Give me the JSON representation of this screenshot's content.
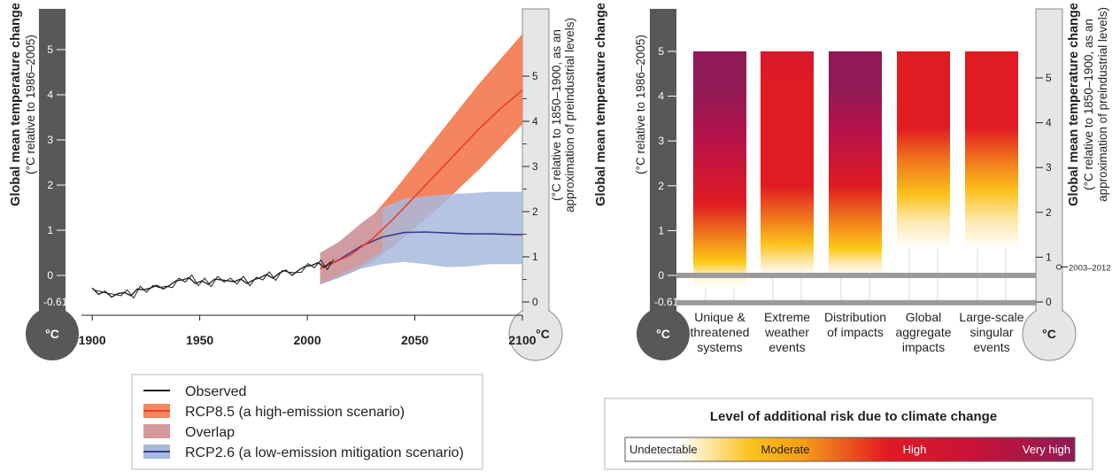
{
  "chart_data": [
    {
      "type": "line",
      "left_axis": {
        "title": "Global mean temperature change",
        "subtitle": "(°C relative to 1986–2005)",
        "ticks": [
          "0",
          "1",
          "2",
          "3",
          "4",
          "5"
        ],
        "baseline_label": "-0.61",
        "unit_label": "°C"
      },
      "right_axis": {
        "subtitle_line1": "(°C relative to 1850–1900, as an",
        "subtitle_line2": "approximation of preindustrial levels)",
        "ticks": [
          "0",
          "1",
          "2",
          "3",
          "4",
          "5"
        ],
        "unit_label": "°C"
      },
      "x_ticks": [
        "1900",
        "1950",
        "2000",
        "2050",
        "2100"
      ],
      "xlim": [
        1895,
        2100
      ],
      "ylim": [
        -0.61,
        5.5
      ],
      "series": [
        {
          "name": "Observed",
          "color": "#231f20",
          "x": [
            1900,
            1903,
            1906,
            1909,
            1912,
            1915,
            1918,
            1921,
            1924,
            1927,
            1930,
            1933,
            1936,
            1939,
            1942,
            1945,
            1948,
            1951,
            1954,
            1957,
            1960,
            1963,
            1966,
            1969,
            1972,
            1975,
            1978,
            1981,
            1984,
            1987,
            1990,
            1993,
            1996,
            1999,
            2002,
            2005,
            2008,
            2011
          ],
          "y": [
            -0.28,
            -0.42,
            -0.35,
            -0.48,
            -0.4,
            -0.38,
            -0.45,
            -0.3,
            -0.32,
            -0.28,
            -0.22,
            -0.3,
            -0.22,
            -0.12,
            -0.1,
            -0.05,
            -0.18,
            -0.12,
            -0.2,
            -0.08,
            -0.1,
            -0.12,
            -0.14,
            -0.08,
            -0.18,
            -0.1,
            -0.05,
            0.02,
            -0.06,
            0.05,
            0.12,
            0.0,
            0.12,
            0.2,
            0.22,
            0.28,
            0.18,
            0.3
          ]
        },
        {
          "name": "RCP8.5 (a high-emission scenario)",
          "color": "#e8402a",
          "band_color": "#f4855e",
          "x": [
            2006,
            2020,
            2030,
            2040,
            2050,
            2060,
            2070,
            2080,
            2090,
            2100
          ],
          "y": [
            0.15,
            0.45,
            0.8,
            1.25,
            1.75,
            2.25,
            2.75,
            3.25,
            3.7,
            4.1
          ],
          "lower": [
            -0.2,
            0.05,
            0.3,
            0.65,
            1.05,
            1.45,
            1.9,
            2.35,
            2.85,
            3.35
          ],
          "upper": [
            0.5,
            0.85,
            1.3,
            1.85,
            2.45,
            3.05,
            3.65,
            4.25,
            4.8,
            5.35
          ]
        },
        {
          "name": "Overlap",
          "color": "#d4999c"
        },
        {
          "name": "RCP2.6 (a low-emission mitigation scenario)",
          "color": "#3b3a8c",
          "band_color": "#a7badd",
          "x": [
            2006,
            2015,
            2025,
            2035,
            2045,
            2055,
            2065,
            2075,
            2085,
            2100
          ],
          "y": [
            0.15,
            0.35,
            0.65,
            0.85,
            0.95,
            0.96,
            0.94,
            0.92,
            0.92,
            0.9
          ],
          "lower": [
            -0.2,
            -0.05,
            0.15,
            0.25,
            0.3,
            0.25,
            0.18,
            0.2,
            0.25,
            0.25
          ],
          "upper": [
            0.5,
            0.75,
            1.15,
            1.5,
            1.7,
            1.75,
            1.8,
            1.82,
            1.85,
            1.85
          ]
        }
      ],
      "legend": [
        {
          "label": "Observed",
          "style": "line",
          "color": "#231f20"
        },
        {
          "label": "RCP8.5 (a high-emission scenario)",
          "style": "band-line",
          "band": "#f4855e",
          "line": "#e8402a"
        },
        {
          "label": "Overlap",
          "style": "box",
          "band": "#d4999c"
        },
        {
          "label": "RCP2.6 (a low-emission mitigation scenario)",
          "style": "band-line",
          "band": "#a7badd",
          "line": "#3b3a8c"
        }
      ]
    },
    {
      "type": "bar",
      "left_axis": {
        "title": "Global mean temperature change",
        "subtitle": "(°C relative to 1986–2005)",
        "ticks": [
          "0",
          "1",
          "2",
          "3",
          "4",
          "5"
        ],
        "baseline_label": "-0.61",
        "unit_label": "°C"
      },
      "right_axis": {
        "title": "Global mean temperature change",
        "subtitle_line1": "(°C relative to 1850–1900, as an",
        "subtitle_line2": "approximation of preindustrial levels)",
        "ticks": [
          "0",
          "1",
          "2",
          "3",
          "4",
          "5"
        ],
        "annotation": "2003–2012",
        "annotation_value": 0.78,
        "unit_label": "°C"
      },
      "ylim": [
        -0.61,
        5
      ],
      "categories": [
        [
          "Unique &",
          "threatened",
          "systems"
        ],
        [
          "Extreme",
          "weather",
          "events"
        ],
        [
          "Distribution",
          "of impacts"
        ],
        [
          "Global",
          "aggregate",
          "impacts"
        ],
        [
          "Large-scale",
          "singular",
          "events"
        ]
      ],
      "risk_bars": [
        {
          "bottom": -0.3,
          "top": 5,
          "stops": [
            [
              -0.3,
              "#ffffff"
            ],
            [
              0.0,
              "#fff3c8"
            ],
            [
              0.3,
              "#fcc917"
            ],
            [
              0.9,
              "#f07a1c"
            ],
            [
              1.6,
              "#e01b22"
            ],
            [
              3.0,
              "#b8124a"
            ],
            [
              4.2,
              "#8f1a55"
            ],
            [
              5,
              "#8f1a55"
            ]
          ]
        },
        {
          "bottom": 0,
          "top": 5,
          "stops": [
            [
              0,
              "#ffffff"
            ],
            [
              0.3,
              "#fde7a8"
            ],
            [
              0.7,
              "#fbc21b"
            ],
            [
              1.3,
              "#f0731d"
            ],
            [
              2.0,
              "#e01b22"
            ],
            [
              4.2,
              "#e01b22"
            ],
            [
              5,
              "#d8182d"
            ]
          ]
        },
        {
          "bottom": 0,
          "top": 5,
          "stops": [
            [
              0,
              "#ffffff"
            ],
            [
              0.3,
              "#fde7a8"
            ],
            [
              0.6,
              "#fcc917"
            ],
            [
              1.3,
              "#f0731d"
            ],
            [
              2.0,
              "#e01b22"
            ],
            [
              3.2,
              "#b8124a"
            ],
            [
              4.2,
              "#8f1a55"
            ],
            [
              5,
              "#8f1a55"
            ]
          ]
        },
        {
          "bottom": 0.6,
          "top": 5,
          "stops": [
            [
              0.6,
              "#ffffff"
            ],
            [
              1.2,
              "#fde9b0"
            ],
            [
              1.8,
              "#fbc21b"
            ],
            [
              2.6,
              "#f0731d"
            ],
            [
              3.3,
              "#e01b22"
            ],
            [
              5,
              "#e01b22"
            ]
          ]
        },
        {
          "bottom": 0.6,
          "top": 5,
          "stops": [
            [
              0.6,
              "#ffffff"
            ],
            [
              1.2,
              "#fde9b0"
            ],
            [
              1.9,
              "#fbc21b"
            ],
            [
              2.6,
              "#f0731d"
            ],
            [
              3.3,
              "#e01b22"
            ],
            [
              5,
              "#e01b22"
            ]
          ]
        }
      ],
      "risk_legend": {
        "title": "Level of additional risk due to climate change",
        "labels": [
          "Undetectable",
          "Moderate",
          "High",
          "Very high"
        ],
        "colors": [
          "#ffffff",
          "#fbc21b",
          "#e01b22",
          "#8f1a55"
        ]
      }
    }
  ]
}
